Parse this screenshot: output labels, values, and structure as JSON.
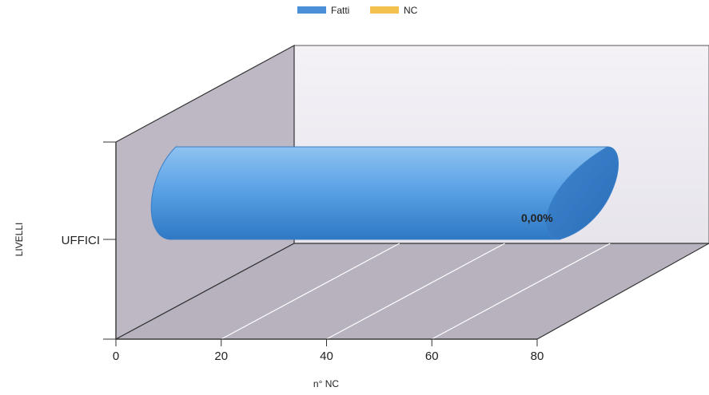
{
  "chart_data": {
    "type": "bar",
    "orientation": "horizontal",
    "style": "3d-cylinder",
    "categories": [
      "UFFICI"
    ],
    "series": [
      {
        "name": "Fatti",
        "values": [
          80
        ],
        "color": "#4a90d9"
      },
      {
        "name": "NC",
        "values": [
          0
        ],
        "color": "#f2c14e"
      }
    ],
    "data_labels": [
      "0,00%"
    ],
    "xlabel": "n° NC",
    "ylabel": "LIVELLI",
    "xlim": [
      0,
      80
    ],
    "xticks": [
      0,
      20,
      40,
      60,
      80
    ],
    "grid": true,
    "legend_position": "top-center"
  }
}
